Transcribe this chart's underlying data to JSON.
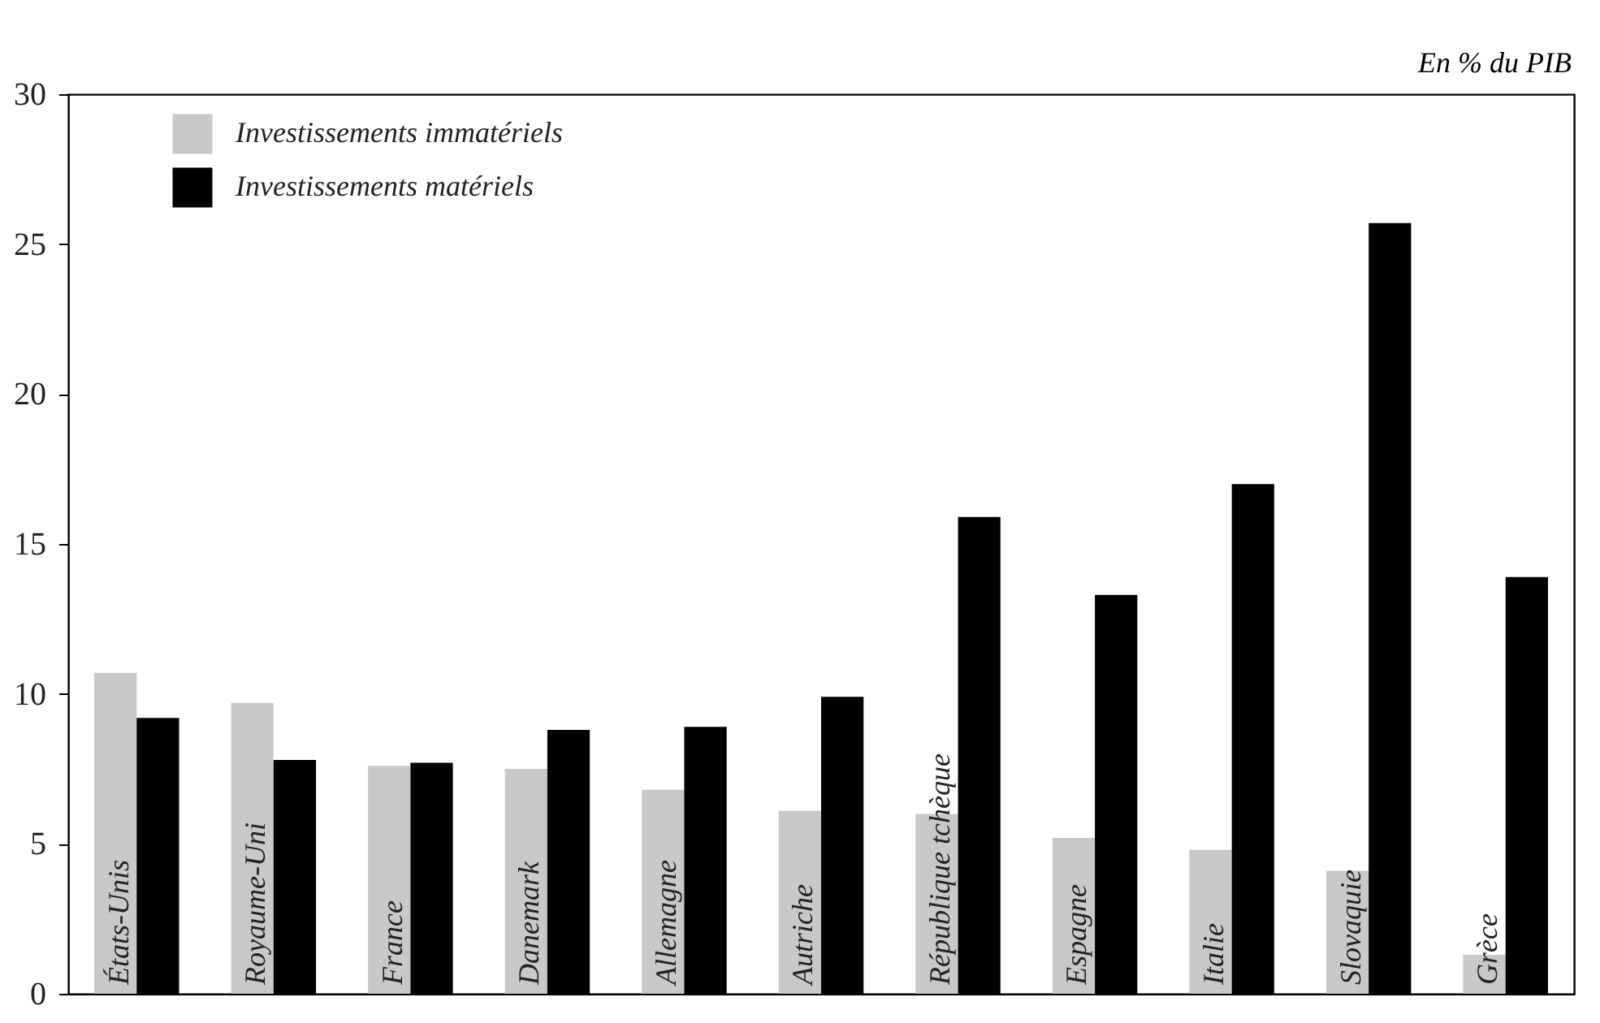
{
  "chart_data": {
    "type": "bar",
    "ylabel": "En % du PIB",
    "categories": [
      "États-Unis",
      "Royaume-Uni",
      "France",
      "Danemark",
      "Allemagne",
      "Autriche",
      "République  tchèque",
      "Espagne",
      "Italie",
      "Slovaquie",
      "Grèce"
    ],
    "series": [
      {
        "name": "Investissements immatériels",
        "color": "#c8c8c8",
        "values": [
          10.7,
          9.7,
          7.6,
          7.5,
          6.8,
          6.1,
          6.0,
          5.2,
          4.8,
          4.1,
          1.3
        ]
      },
      {
        "name": "Investissements matériels",
        "color": "#000000",
        "values": [
          9.2,
          7.8,
          7.7,
          8.8,
          8.9,
          9.9,
          15.9,
          13.3,
          17.0,
          25.7,
          13.9
        ]
      }
    ],
    "ylim": [
      0,
      30
    ],
    "yticks": [
      0,
      5,
      10,
      15,
      20,
      25,
      30
    ],
    "grid": false,
    "legend": "top left"
  }
}
